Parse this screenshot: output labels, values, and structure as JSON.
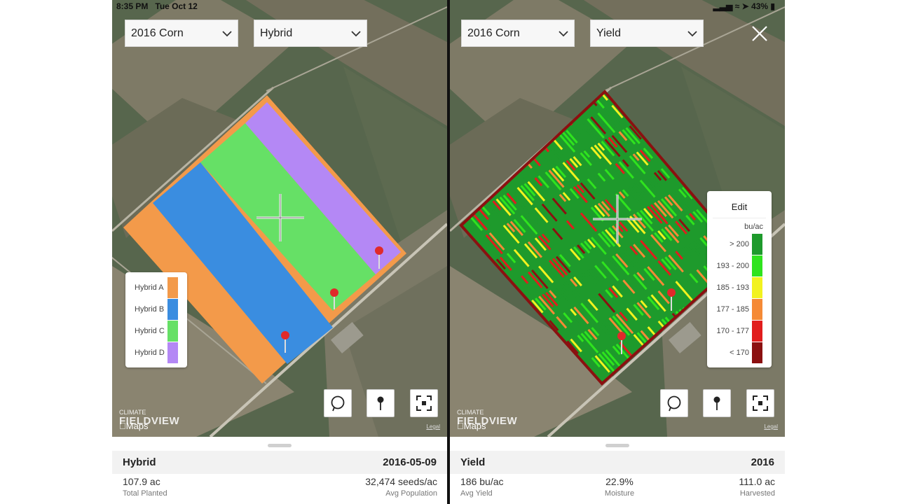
{
  "status": {
    "time": "8:35 PM",
    "date": "Tue Oct 12",
    "battery": "43%"
  },
  "left": {
    "season": "2016 Corn",
    "layer": "Hybrid",
    "legend": [
      {
        "label": "Hybrid A",
        "color": "#f39a4a"
      },
      {
        "label": "Hybrid B",
        "color": "#3a8de0"
      },
      {
        "label": "Hybrid C",
        "color": "#66e066"
      },
      {
        "label": "Hybrid D",
        "color": "#b488f5"
      }
    ],
    "brand_top": "CLIMATE",
    "brand_name": "FIELDVIEW",
    "maps_label": "Maps",
    "legal": "Legal",
    "panel": {
      "title": "Hybrid",
      "date": "2016-05-09",
      "stats": [
        {
          "value": "107.9 ac",
          "label": "Total Planted"
        },
        {
          "value": "32,474 seeds/ac",
          "label": "Avg Population"
        }
      ]
    }
  },
  "right": {
    "season": "2016 Corn",
    "layer": "Yield",
    "legend": {
      "edit": "Edit",
      "unit": "bu/ac",
      "rows": [
        {
          "label": "> 200",
          "color": "#1e9a2c"
        },
        {
          "label": "193 - 200",
          "color": "#2fe31e"
        },
        {
          "label": "185 - 193",
          "color": "#f2f21f"
        },
        {
          "label": "177 - 185",
          "color": "#f58a36"
        },
        {
          "label": "170 - 177",
          "color": "#e11d1d"
        },
        {
          "label": "< 170",
          "color": "#8b1010"
        }
      ]
    },
    "brand_top": "CLIMATE",
    "brand_name": "FIELDVIEW",
    "maps_label": "Maps",
    "legal": "Legal",
    "panel": {
      "title": "Yield",
      "year": "2016",
      "stats": [
        {
          "value": "186 bu/ac",
          "label": "Avg Yield"
        },
        {
          "value": "22.9%",
          "label": "Moisture"
        },
        {
          "value": "111.0 ac",
          "label": "Harvested"
        }
      ]
    }
  }
}
